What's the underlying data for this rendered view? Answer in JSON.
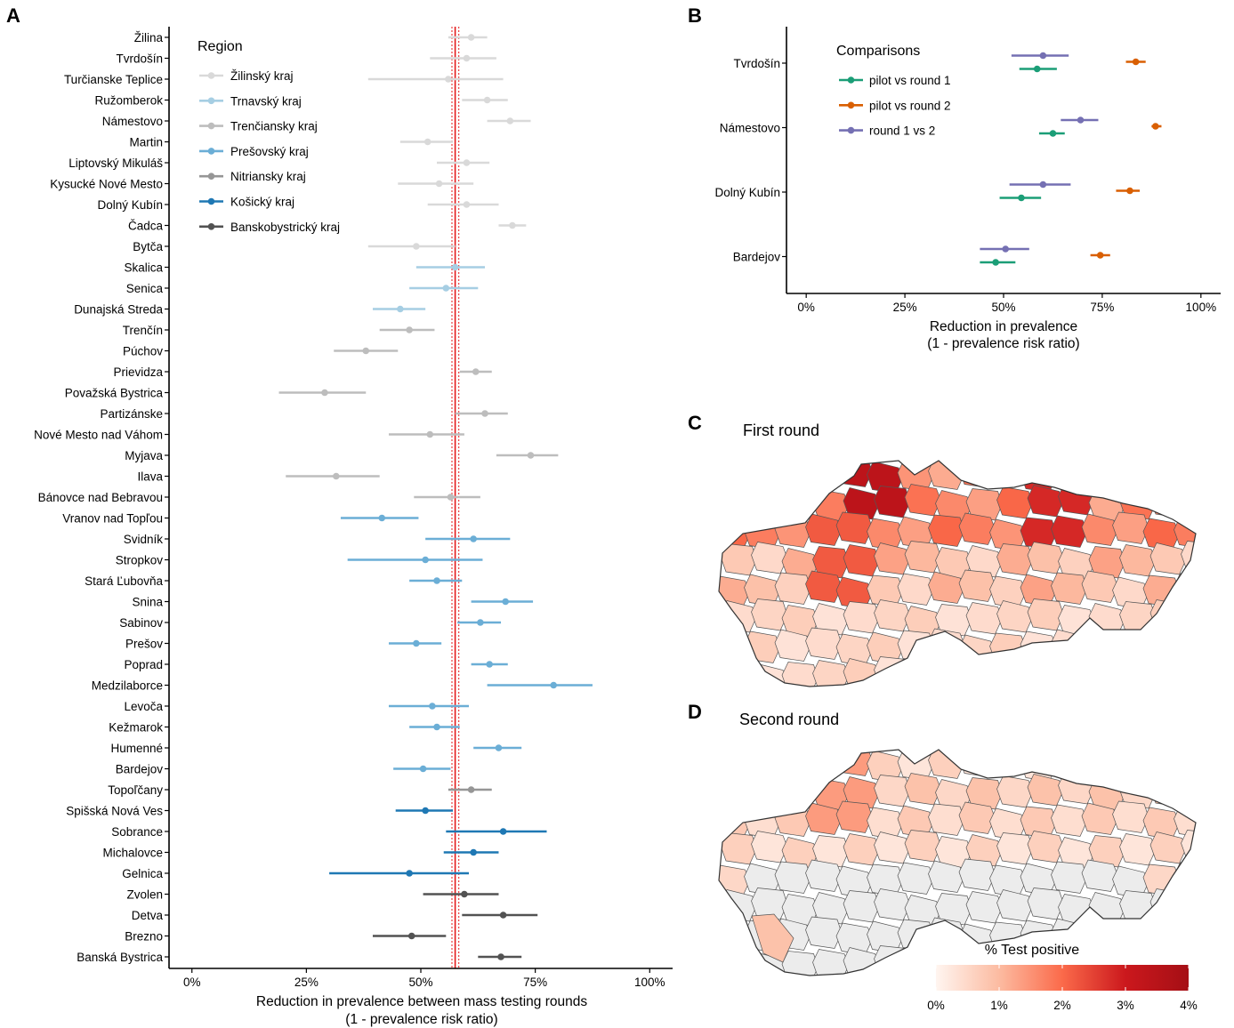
{
  "panels": {
    "a": {
      "letter": "A"
    },
    "b": {
      "letter": "B"
    },
    "c": {
      "letter": "C",
      "title": "First round"
    },
    "d": {
      "letter": "D",
      "title": "Second round"
    }
  },
  "colorbar": {
    "title": "% Test positive",
    "ticks": [
      "0%",
      "1%",
      "2%",
      "3%",
      "4%"
    ],
    "colors": [
      "#fff5f0",
      "#fcbba1",
      "#fb6a4a",
      "#cb181d",
      "#a50f15"
    ],
    "no_data_color": "#ececec"
  },
  "chart_data": [
    {
      "type": "scatter",
      "panel": "A",
      "xlabel": "Reduction in prevalence between mass testing rounds",
      "xlabel2": "(1 - prevalence risk ratio)",
      "xlim": [
        -0.05,
        1.05
      ],
      "xticks": [
        0,
        0.25,
        0.5,
        0.75,
        1.0
      ],
      "xtick_labels": [
        "0%",
        "25%",
        "50%",
        "75%",
        "100%"
      ],
      "reference_line": {
        "value": 0.575,
        "lower": 0.568,
        "upper": 0.583,
        "color": "#e41a1c"
      },
      "legend": {
        "title": "Region",
        "position": "top-left",
        "entries": [
          {
            "name": "Žilinský kraj",
            "color": "#d9d9d9"
          },
          {
            "name": "Trnavský kraj",
            "color": "#a6cee3"
          },
          {
            "name": "Trenčiansky kraj",
            "color": "#bdbdbd"
          },
          {
            "name": "Prešovský kraj",
            "color": "#6baed6"
          },
          {
            "name": "Nitriansky kraj",
            "color": "#969696"
          },
          {
            "name": "Košický kraj",
            "color": "#1f78b4"
          },
          {
            "name": "Banskobystrický kraj",
            "color": "#525252"
          }
        ]
      },
      "districts": [
        {
          "name": "Žilina",
          "region": 0,
          "est": 0.61,
          "lo": 0.56,
          "hi": 0.645
        },
        {
          "name": "Tvrdošín",
          "region": 0,
          "est": 0.6,
          "lo": 0.52,
          "hi": 0.665
        },
        {
          "name": "Turčianske Teplice",
          "region": 0,
          "est": 0.56,
          "lo": 0.385,
          "hi": 0.68
        },
        {
          "name": "Ružomberok",
          "region": 0,
          "est": 0.645,
          "lo": 0.59,
          "hi": 0.69
        },
        {
          "name": "Námestovo",
          "region": 0,
          "est": 0.695,
          "lo": 0.645,
          "hi": 0.74
        },
        {
          "name": "Martin",
          "region": 0,
          "est": 0.515,
          "lo": 0.455,
          "hi": 0.57
        },
        {
          "name": "Liptovský Mikuláš",
          "region": 0,
          "est": 0.6,
          "lo": 0.535,
          "hi": 0.65
        },
        {
          "name": "Kysucké Nové Mesto",
          "region": 0,
          "est": 0.54,
          "lo": 0.45,
          "hi": 0.615
        },
        {
          "name": "Dolný Kubín",
          "region": 0,
          "est": 0.6,
          "lo": 0.515,
          "hi": 0.67
        },
        {
          "name": "Čadca",
          "region": 0,
          "est": 0.7,
          "lo": 0.67,
          "hi": 0.73
        },
        {
          "name": "Bytča",
          "region": 0,
          "est": 0.49,
          "lo": 0.385,
          "hi": 0.575
        },
        {
          "name": "Skalica",
          "region": 1,
          "est": 0.575,
          "lo": 0.49,
          "hi": 0.64
        },
        {
          "name": "Senica",
          "region": 1,
          "est": 0.555,
          "lo": 0.475,
          "hi": 0.625
        },
        {
          "name": "Dunajská Streda",
          "region": 1,
          "est": 0.455,
          "lo": 0.395,
          "hi": 0.51
        },
        {
          "name": "Trenčín",
          "region": 2,
          "est": 0.475,
          "lo": 0.41,
          "hi": 0.53
        },
        {
          "name": "Púchov",
          "region": 2,
          "est": 0.38,
          "lo": 0.31,
          "hi": 0.45
        },
        {
          "name": "Prievidza",
          "region": 2,
          "est": 0.62,
          "lo": 0.585,
          "hi": 0.655
        },
        {
          "name": "Považská Bystrica",
          "region": 2,
          "est": 0.29,
          "lo": 0.19,
          "hi": 0.38
        },
        {
          "name": "Partizánske",
          "region": 2,
          "est": 0.64,
          "lo": 0.575,
          "hi": 0.69
        },
        {
          "name": "Nové Mesto nad Váhom",
          "region": 2,
          "est": 0.52,
          "lo": 0.43,
          "hi": 0.595
        },
        {
          "name": "Myjava",
          "region": 2,
          "est": 0.74,
          "lo": 0.665,
          "hi": 0.8
        },
        {
          "name": "Ilava",
          "region": 2,
          "est": 0.315,
          "lo": 0.205,
          "hi": 0.41
        },
        {
          "name": "Bánovce nad Bebravou",
          "region": 2,
          "est": 0.565,
          "lo": 0.485,
          "hi": 0.63
        },
        {
          "name": "Vranov nad Topľou",
          "region": 3,
          "est": 0.415,
          "lo": 0.325,
          "hi": 0.495
        },
        {
          "name": "Svidník",
          "region": 3,
          "est": 0.615,
          "lo": 0.51,
          "hi": 0.695
        },
        {
          "name": "Stropkov",
          "region": 3,
          "est": 0.51,
          "lo": 0.34,
          "hi": 0.635
        },
        {
          "name": "Stará Ľubovňa",
          "region": 3,
          "est": 0.535,
          "lo": 0.475,
          "hi": 0.59
        },
        {
          "name": "Snina",
          "region": 3,
          "est": 0.685,
          "lo": 0.61,
          "hi": 0.745
        },
        {
          "name": "Sabinov",
          "region": 3,
          "est": 0.63,
          "lo": 0.58,
          "hi": 0.675
        },
        {
          "name": "Prešov",
          "region": 3,
          "est": 0.49,
          "lo": 0.43,
          "hi": 0.545
        },
        {
          "name": "Poprad",
          "region": 3,
          "est": 0.65,
          "lo": 0.61,
          "hi": 0.69
        },
        {
          "name": "Medzilaborce",
          "region": 3,
          "est": 0.79,
          "lo": 0.645,
          "hi": 0.875
        },
        {
          "name": "Levoča",
          "region": 3,
          "est": 0.525,
          "lo": 0.43,
          "hi": 0.605
        },
        {
          "name": "Kežmarok",
          "region": 3,
          "est": 0.535,
          "lo": 0.475,
          "hi": 0.585
        },
        {
          "name": "Humenné",
          "region": 3,
          "est": 0.67,
          "lo": 0.615,
          "hi": 0.72
        },
        {
          "name": "Bardejov",
          "region": 3,
          "est": 0.505,
          "lo": 0.44,
          "hi": 0.565
        },
        {
          "name": "Topoľčany",
          "region": 4,
          "est": 0.61,
          "lo": 0.56,
          "hi": 0.655
        },
        {
          "name": "Spišská Nová Ves",
          "region": 5,
          "est": 0.51,
          "lo": 0.445,
          "hi": 0.57
        },
        {
          "name": "Sobrance",
          "region": 5,
          "est": 0.68,
          "lo": 0.555,
          "hi": 0.775
        },
        {
          "name": "Michalovce",
          "region": 5,
          "est": 0.615,
          "lo": 0.55,
          "hi": 0.67
        },
        {
          "name": "Gelnica",
          "region": 5,
          "est": 0.475,
          "lo": 0.3,
          "hi": 0.605
        },
        {
          "name": "Zvolen",
          "region": 6,
          "est": 0.595,
          "lo": 0.505,
          "hi": 0.67
        },
        {
          "name": "Detva",
          "region": 6,
          "est": 0.68,
          "lo": 0.59,
          "hi": 0.755
        },
        {
          "name": "Brezno",
          "region": 6,
          "est": 0.48,
          "lo": 0.395,
          "hi": 0.555
        },
        {
          "name": "Banská Bystrica",
          "region": 6,
          "est": 0.675,
          "lo": 0.625,
          "hi": 0.72
        }
      ]
    },
    {
      "type": "scatter",
      "panel": "B",
      "xlabel": "Reduction in prevalence",
      "xlabel2": "(1 - prevalence risk ratio)",
      "xlim": [
        -0.05,
        1.05
      ],
      "xticks": [
        0,
        0.25,
        0.5,
        0.75,
        1.0
      ],
      "xtick_labels": [
        "0%",
        "25%",
        "50%",
        "75%",
        "100%"
      ],
      "legend": {
        "title": "Comparisons",
        "position": "top-left",
        "entries": [
          {
            "name": "pilot vs round 1",
            "color": "#1b9e77"
          },
          {
            "name": "pilot vs round 2",
            "color": "#d95f02"
          },
          {
            "name": "round 1 vs 2",
            "color": "#7570b3"
          }
        ]
      },
      "districts": [
        {
          "name": "Tvrdošín",
          "values": [
            {
              "comparison": 0,
              "est": 0.585,
              "lo": 0.54,
              "hi": 0.635
            },
            {
              "comparison": 1,
              "est": 0.835,
              "lo": 0.81,
              "hi": 0.86
            },
            {
              "comparison": 2,
              "est": 0.6,
              "lo": 0.52,
              "hi": 0.665
            }
          ]
        },
        {
          "name": "Námestovo",
          "values": [
            {
              "comparison": 0,
              "est": 0.625,
              "lo": 0.59,
              "hi": 0.655
            },
            {
              "comparison": 1,
              "est": 0.885,
              "lo": 0.875,
              "hi": 0.9
            },
            {
              "comparison": 2,
              "est": 0.695,
              "lo": 0.645,
              "hi": 0.74
            }
          ]
        },
        {
          "name": "Dolný Kubín",
          "values": [
            {
              "comparison": 0,
              "est": 0.545,
              "lo": 0.49,
              "hi": 0.595
            },
            {
              "comparison": 1,
              "est": 0.82,
              "lo": 0.785,
              "hi": 0.845
            },
            {
              "comparison": 2,
              "est": 0.6,
              "lo": 0.515,
              "hi": 0.67
            }
          ]
        },
        {
          "name": "Bardejov",
          "values": [
            {
              "comparison": 0,
              "est": 0.48,
              "lo": 0.44,
              "hi": 0.53
            },
            {
              "comparison": 1,
              "est": 0.745,
              "lo": 0.72,
              "hi": 0.77
            },
            {
              "comparison": 2,
              "est": 0.505,
              "lo": 0.44,
              "hi": 0.565
            }
          ]
        }
      ]
    }
  ]
}
